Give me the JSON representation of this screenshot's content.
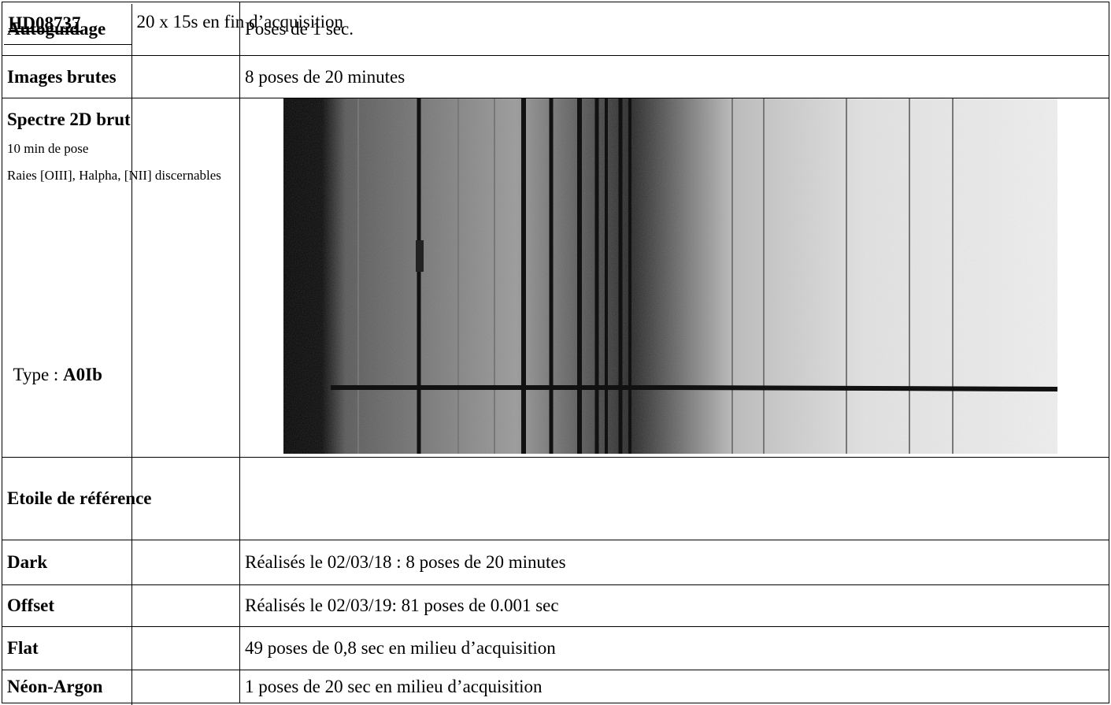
{
  "table": {
    "rows": [
      {
        "label": "Autoguidage",
        "value": "Poses de 1 sec."
      },
      {
        "label": "Images brutes",
        "value": "8 poses de 20 minutes"
      },
      {
        "label": "Spectre 2D brut",
        "notes": [
          "10 min de pose",
          "Raies [OIII], Halpha, [NII] discernables"
        ]
      },
      {
        "label": "Etoile de référence",
        "star": "HD08737",
        "type_label": "Type :",
        "type": "A0Ib",
        "value": "20 x 15s en fin d’acquisition"
      },
      {
        "label": "Dark",
        "value": "Réalisés le 02/03/18 : 8 poses de 20 minutes"
      },
      {
        "label": "Offset",
        "value": "Réalisés le 02/03/19: 81 poses de 0.001 sec"
      },
      {
        "label": "Flat",
        "value": "49 poses de 0,8 sec en milieu d’acquisition"
      },
      {
        "label": "Néon-Argon",
        "value": "1 poses de 20 sec en milieu d’acquisition"
      }
    ]
  }
}
